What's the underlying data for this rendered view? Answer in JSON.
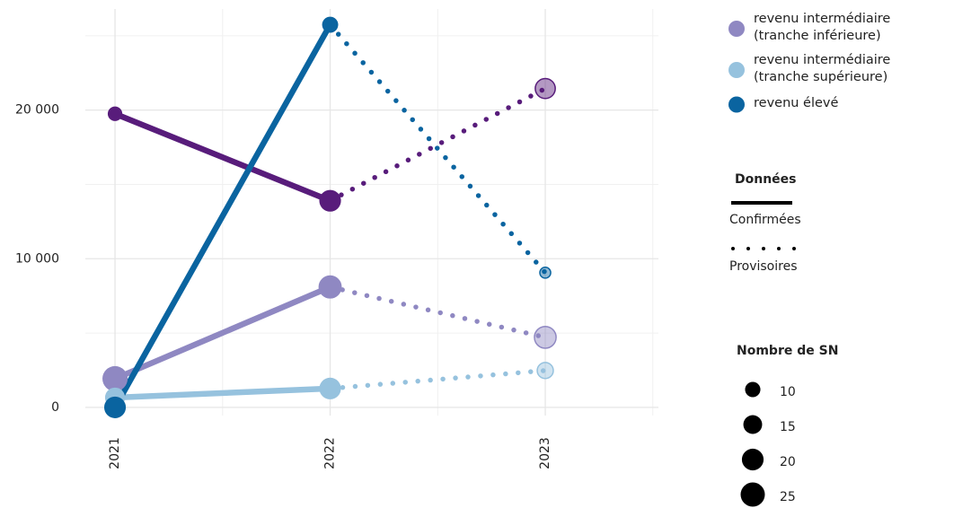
{
  "chart_data": {
    "type": "line",
    "x": [
      2021,
      2022,
      2023
    ],
    "xlim": [
      2020.862,
      2023.526
    ],
    "xticks": [
      2021,
      2022,
      2023
    ],
    "xminorticks": [
      2021.5,
      2022.5,
      2023.5
    ],
    "ylim": [
      -550,
      26800
    ],
    "yticks": [
      {
        "value": 0,
        "label": "0"
      },
      {
        "value": 10000,
        "label": "10 000"
      },
      {
        "value": 20000,
        "label": "20 000"
      }
    ],
    "yminorticks": [
      5000,
      15000,
      25000
    ],
    "grid": true,
    "provisional_from": 2022,
    "series": [
      {
        "color": "#581c7b",
        "values": [
          19750,
          13900,
          21450
        ],
        "sizes": [
          9,
          20,
          17
        ]
      },
      {
        "name": "revenu intermédiaire\n(tranche inférieure)",
        "color": "#8f88c2",
        "values": [
          1930,
          8100,
          4710
        ],
        "sizes": [
          27,
          23,
          20
        ]
      },
      {
        "name": "revenu intermédiaire\n(tranche supérieure)",
        "color": "#96c2de",
        "values": [
          660,
          1270,
          2480
        ],
        "sizes": [
          17,
          20,
          11
        ]
      },
      {
        "name": "revenu élevé",
        "color": "#0a64a0",
        "values": [
          0,
          25740,
          9060
        ],
        "sizes": [
          20,
          11,
          5
        ]
      }
    ],
    "line_legend": {
      "title": "Données",
      "labels": [
        "Confirmées",
        "Provisoires"
      ]
    },
    "size_legend": {
      "title": "Nombre de SN",
      "values": [
        10,
        15,
        20,
        25
      ]
    }
  }
}
